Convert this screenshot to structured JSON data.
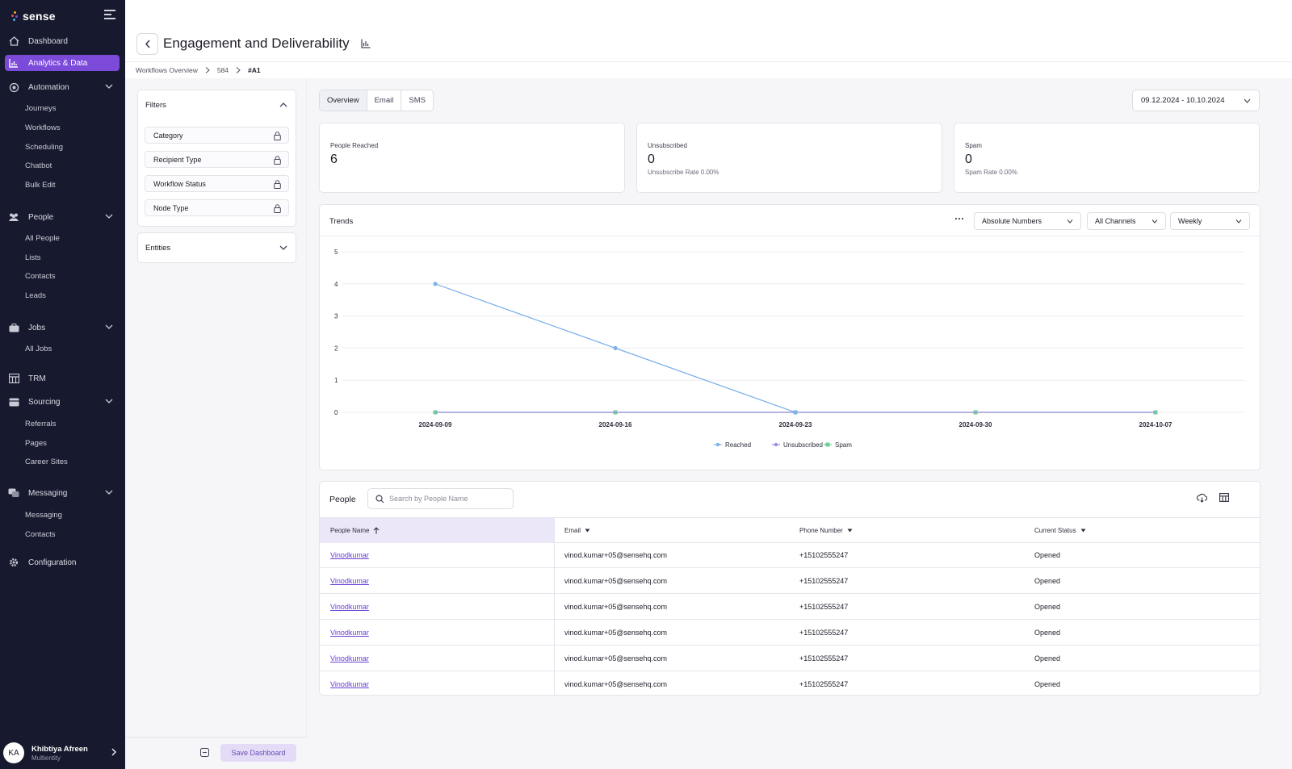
{
  "app": {
    "name": "sense"
  },
  "sidebar": {
    "top": [
      {
        "label": "Dashboard",
        "icon": "home-icon"
      },
      {
        "label": "Analytics & Data",
        "icon": "bar-chart-icon",
        "active": true
      },
      {
        "label": "Automation",
        "icon": "automation-icon"
      },
      {
        "label": "People",
        "icon": "people-icon"
      },
      {
        "label": "Jobs",
        "icon": "briefcase-icon"
      },
      {
        "label": "TRM",
        "icon": "trm-icon"
      },
      {
        "label": "Sourcing",
        "icon": "sourcing-icon"
      },
      {
        "label": "Messaging",
        "icon": "messaging-icon"
      },
      {
        "label": "Configuration",
        "icon": "gear-icon"
      }
    ],
    "automation_items": [
      "Journeys",
      "Workflows",
      "Scheduling",
      "Chatbot",
      "Bulk Edit"
    ],
    "people_items": [
      "All People",
      "Lists",
      "Contacts",
      "Leads"
    ],
    "jobs_items": [
      "All Jobs"
    ],
    "sourcing_items": [
      "Referrals",
      "Pages",
      "Career Sites"
    ],
    "messaging_items": [
      "Messaging",
      "Contacts"
    ],
    "user": {
      "initials": "KA",
      "name": "Khibtiya Afreen",
      "sub": "Multientity"
    }
  },
  "header": {
    "title": "Engagement and Deliverability",
    "breadcrumb": [
      "Workflows Overview",
      "584",
      "#A1"
    ]
  },
  "filters": {
    "title": "Filters",
    "rows": [
      "Category",
      "Recipient Type",
      "Workflow Status",
      "Node Type"
    ],
    "entities": "Entities",
    "save_label": "Save Dashboard"
  },
  "tabs": [
    "Overview",
    "Email",
    "SMS"
  ],
  "date_range": "09.12.2024 - 10.10.2024",
  "stats": [
    {
      "label": "People Reached",
      "value": "6",
      "sub": ""
    },
    {
      "label": "Unsubscribed",
      "value": "0",
      "sub": "Unsubscribe Rate 0.00%"
    },
    {
      "label": "Spam",
      "value": "0",
      "sub": "Spam Rate 0.00%"
    }
  ],
  "trends": {
    "title": "Trends",
    "selects": [
      "Absolute Numbers",
      "All Channels",
      "Weekly"
    ]
  },
  "chart_data": {
    "type": "line",
    "title": "",
    "x": [
      "2024-09-09",
      "2024-09-16",
      "2024-09-23",
      "2024-09-30",
      "2024-10-07"
    ],
    "ylim": [
      0,
      5
    ],
    "yticks": [
      "0",
      "1",
      "2",
      "3",
      "4",
      "5"
    ],
    "grid": true,
    "legend_position": "bottom",
    "series": [
      {
        "name": "Reached",
        "values": [
          4,
          2,
          0,
          null,
          null
        ],
        "color": "#7fb2ea"
      },
      {
        "name": "Unsubscribed",
        "values": [
          0,
          0,
          0,
          0,
          0
        ],
        "color": "#9b8fe0"
      },
      {
        "name": "Spam",
        "values": [
          0,
          0,
          0,
          0,
          0
        ],
        "color": "#6fcf9a"
      }
    ]
  },
  "people": {
    "title": "People",
    "search_placeholder": "Search by People Name",
    "columns": [
      "People Name",
      "Email",
      "Phone Number",
      "Current Status"
    ],
    "rows": [
      [
        "Vinodkumar",
        "vinod.kumar+05@sensehq.com",
        "+15102555247",
        "Opened"
      ],
      [
        "Vinodkumar",
        "vinod.kumar+05@sensehq.com",
        "+15102555247",
        "Opened"
      ],
      [
        "Vinodkumar",
        "vinod.kumar+05@sensehq.com",
        "+15102555247",
        "Opened"
      ],
      [
        "Vinodkumar",
        "vinod.kumar+05@sensehq.com",
        "+15102555247",
        "Opened"
      ],
      [
        "Vinodkumar",
        "vinod.kumar+05@sensehq.com",
        "+15102555247",
        "Opened"
      ],
      [
        "Vinodkumar",
        "vinod.kumar+05@sensehq.com",
        "+15102555247",
        "Opened"
      ]
    ]
  }
}
